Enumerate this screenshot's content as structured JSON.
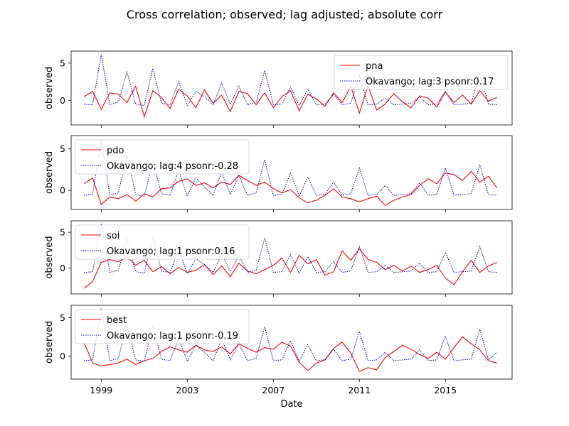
{
  "chart_data": {
    "type": "line",
    "title": "Cross correlation; observed; lag adjusted; absolute corr",
    "xlabel": "Date",
    "x_ticks": [
      "1999",
      "2003",
      "2007",
      "2011",
      "2015"
    ],
    "x_range": [
      1997.6,
      2018.1
    ],
    "grid": false,
    "colors": {
      "index": "#ff0000",
      "okavango": "#0000cc"
    },
    "panels": [
      {
        "ylabel": "observed",
        "ylim": [
          -3.3,
          6.6
        ],
        "y_ticks": [
          0,
          5
        ],
        "legend_position": "upper right",
        "series": [
          {
            "name": "pna",
            "style": "solid",
            "x": [
              1998.2,
              1998.6,
              1999.0,
              1999.4,
              1999.8,
              2000.2,
              2000.6,
              2001.0,
              2001.4,
              2001.8,
              2002.2,
              2002.6,
              2003.0,
              2003.4,
              2003.8,
              2004.2,
              2004.6,
              2005.0,
              2005.4,
              2005.8,
              2006.2,
              2006.6,
              2007.0,
              2007.4,
              2007.8,
              2008.2,
              2008.6,
              2009.0,
              2009.4,
              2009.8,
              2010.2,
              2010.6,
              2011.0,
              2011.4,
              2011.8,
              2012.2,
              2012.6,
              2013.0,
              2013.4,
              2013.8,
              2014.2,
              2014.6,
              2015.0,
              2015.4,
              2015.8,
              2016.2,
              2016.6,
              2017.0,
              2017.4
            ],
            "values": [
              0.5,
              1.2,
              -1.2,
              1.0,
              0.8,
              -0.3,
              1.9,
              -2.2,
              1.3,
              0.4,
              -1.1,
              1.5,
              0.6,
              -1.0,
              1.4,
              -0.4,
              0.7,
              -1.5,
              1.2,
              0.9,
              -0.6,
              1.0,
              -1.0,
              0.5,
              1.3,
              -1.4,
              0.8,
              0.2,
              -0.8,
              1.0,
              -0.3,
              1.9,
              -1.7,
              2.0,
              -1.3,
              -0.5,
              0.9,
              -0.2,
              -1.0,
              0.6,
              0.3,
              -0.9,
              1.1,
              -0.3,
              0.7,
              -0.5,
              1.3,
              -0.1,
              0.4
            ]
          },
          {
            "name": "Okavango; lag:3 psonr:0.17",
            "style": "dotted",
            "x": [
              1998.2,
              1998.6,
              1999.0,
              1999.4,
              1999.8,
              2000.2,
              2000.6,
              2001.0,
              2001.4,
              2001.8,
              2002.2,
              2002.6,
              2003.0,
              2003.4,
              2003.8,
              2004.2,
              2004.6,
              2005.0,
              2005.4,
              2005.8,
              2006.2,
              2006.6,
              2007.0,
              2007.4,
              2007.8,
              2008.2,
              2008.6,
              2009.0,
              2009.4,
              2009.8,
              2010.2,
              2010.6,
              2011.0,
              2011.4,
              2011.8,
              2012.2,
              2012.6,
              2013.0,
              2013.4,
              2013.8,
              2014.2,
              2014.6,
              2015.0,
              2015.4,
              2015.8,
              2016.2,
              2016.6,
              2017.0,
              2017.4
            ],
            "values": [
              -0.5,
              -0.6,
              6.2,
              -0.6,
              -0.2,
              3.8,
              -0.5,
              -0.7,
              4.3,
              -0.4,
              -0.6,
              2.5,
              -0.7,
              1.2,
              0.5,
              -0.6,
              2.3,
              -0.5,
              1.9,
              -0.6,
              -0.3,
              4.0,
              -0.6,
              -0.5,
              1.8,
              -0.7,
              1.5,
              -0.6,
              -0.5,
              0.8,
              -0.6,
              -0.4,
              3.3,
              -0.6,
              -0.5,
              0.3,
              -0.6,
              -0.5,
              -0.4,
              0.5,
              -0.6,
              -0.5,
              1.2,
              -0.6,
              -0.5,
              -0.4,
              3.6,
              -0.5,
              -0.6
            ]
          }
        ]
      },
      {
        "ylabel": "observed",
        "ylim": [
          -2.3,
          6.6
        ],
        "y_ticks": [
          0,
          5
        ],
        "legend_position": "upper left",
        "series": [
          {
            "name": "pdo",
            "style": "solid",
            "x": [
              1998.2,
              1998.6,
              1999.0,
              1999.4,
              1999.8,
              2000.2,
              2000.6,
              2001.0,
              2001.4,
              2001.8,
              2002.2,
              2002.6,
              2003.0,
              2003.4,
              2003.8,
              2004.2,
              2004.6,
              2005.0,
              2005.4,
              2005.8,
              2006.2,
              2006.6,
              2007.0,
              2007.4,
              2007.8,
              2008.2,
              2008.6,
              2009.0,
              2009.4,
              2009.8,
              2010.2,
              2010.6,
              2011.0,
              2011.4,
              2011.8,
              2012.2,
              2012.6,
              2013.0,
              2013.4,
              2013.8,
              2014.2,
              2014.6,
              2015.0,
              2015.4,
              2015.8,
              2016.2,
              2016.6,
              2017.0,
              2017.4
            ],
            "values": [
              0.8,
              1.5,
              -1.7,
              -0.8,
              -1.0,
              -0.5,
              -1.3,
              -0.4,
              -0.8,
              0.2,
              0.3,
              1.1,
              1.4,
              0.6,
              0.9,
              0.3,
              1.0,
              0.7,
              1.8,
              1.2,
              0.6,
              1.0,
              0.2,
              -0.3,
              0.1,
              -0.9,
              -1.5,
              -1.2,
              -0.6,
              0.2,
              -0.8,
              -1.0,
              -1.4,
              -1.0,
              -0.7,
              -1.8,
              -1.2,
              -0.8,
              -0.5,
              0.6,
              1.4,
              0.8,
              2.1,
              1.9,
              1.2,
              2.3,
              1.0,
              1.7,
              0.3
            ]
          },
          {
            "name": "Okavango; lag:4 psonr:-0.28",
            "style": "dotted",
            "x": [
              1998.2,
              1998.6,
              1999.0,
              1999.4,
              1999.8,
              2000.2,
              2000.6,
              2001.0,
              2001.4,
              2001.8,
              2002.2,
              2002.6,
              2003.0,
              2003.4,
              2003.8,
              2004.2,
              2004.6,
              2005.0,
              2005.4,
              2005.8,
              2006.2,
              2006.6,
              2007.0,
              2007.4,
              2007.8,
              2008.2,
              2008.6,
              2009.0,
              2009.4,
              2009.8,
              2010.2,
              2010.6,
              2011.0,
              2011.4,
              2011.8,
              2012.2,
              2012.6,
              2013.0,
              2013.4,
              2013.8,
              2014.2,
              2014.6,
              2015.0,
              2015.4,
              2015.8,
              2016.2,
              2016.6,
              2017.0,
              2017.4
            ],
            "values": [
              -0.6,
              -0.5,
              6.1,
              -0.6,
              -0.3,
              4.3,
              -0.5,
              -0.7,
              3.6,
              -0.4,
              -0.6,
              2.4,
              -0.7,
              1.5,
              0.4,
              -0.6,
              2.2,
              -0.5,
              1.8,
              -0.6,
              -0.3,
              3.7,
              -0.6,
              -0.5,
              2.1,
              -0.7,
              1.6,
              -0.6,
              -0.5,
              1.0,
              -0.6,
              -0.4,
              2.7,
              -0.6,
              -0.5,
              0.6,
              -0.6,
              -0.5,
              -0.4,
              0.9,
              -0.6,
              -0.5,
              2.7,
              -0.6,
              -0.5,
              -0.4,
              3.1,
              -0.5,
              -0.6
            ]
          }
        ]
      },
      {
        "ylabel": "observed",
        "ylim": [
          -3.6,
          6.6
        ],
        "y_ticks": [
          0,
          5
        ],
        "legend_position": "upper left",
        "series": [
          {
            "name": "soi",
            "style": "solid",
            "x": [
              1998.2,
              1998.6,
              1999.0,
              1999.4,
              1999.8,
              2000.2,
              2000.6,
              2001.0,
              2001.4,
              2001.8,
              2002.2,
              2002.6,
              2003.0,
              2003.4,
              2003.8,
              2004.2,
              2004.6,
              2005.0,
              2005.4,
              2005.8,
              2006.2,
              2006.6,
              2007.0,
              2007.4,
              2007.8,
              2008.2,
              2008.6,
              2009.0,
              2009.4,
              2009.8,
              2010.2,
              2010.6,
              2011.0,
              2011.4,
              2011.8,
              2012.2,
              2012.6,
              2013.0,
              2013.4,
              2013.8,
              2014.2,
              2014.6,
              2015.0,
              2015.4,
              2015.8,
              2016.2,
              2016.6,
              2017.0,
              2017.4
            ],
            "values": [
              -2.8,
              -1.9,
              0.8,
              1.2,
              0.9,
              1.6,
              0.4,
              1.1,
              -0.5,
              0.2,
              -0.8,
              0.1,
              -0.6,
              -0.3,
              0.5,
              -0.9,
              0.3,
              -1.2,
              0.7,
              -0.4,
              -0.8,
              -0.2,
              0.4,
              1.4,
              -0.6,
              1.8,
              0.6,
              1.2,
              -1.0,
              -0.5,
              2.4,
              1.1,
              2.7,
              1.2,
              0.8,
              -0.2,
              0.4,
              -0.4,
              0.3,
              -0.6,
              -0.2,
              0.4,
              -1.4,
              -2.3,
              -0.5,
              1.1,
              -0.6,
              0.3,
              0.8
            ]
          },
          {
            "name": "Okavango; lag:1 psonr:0.16",
            "style": "dotted",
            "x": [
              1998.2,
              1998.6,
              1999.0,
              1999.4,
              1999.8,
              2000.2,
              2000.6,
              2001.0,
              2001.4,
              2001.8,
              2002.2,
              2002.6,
              2003.0,
              2003.4,
              2003.8,
              2004.2,
              2004.6,
              2005.0,
              2005.4,
              2005.8,
              2006.2,
              2006.6,
              2007.0,
              2007.4,
              2007.8,
              2008.2,
              2008.6,
              2009.0,
              2009.4,
              2009.8,
              2010.2,
              2010.6,
              2011.0,
              2011.4,
              2011.8,
              2012.2,
              2012.6,
              2013.0,
              2013.4,
              2013.8,
              2014.2,
              2014.6,
              2015.0,
              2015.4,
              2015.8,
              2016.2,
              2016.6,
              2017.0,
              2017.4
            ],
            "values": [
              -0.6,
              -0.5,
              6.2,
              -0.6,
              -0.3,
              4.1,
              -0.5,
              -0.7,
              4.4,
              -0.4,
              -0.6,
              2.6,
              -0.7,
              1.3,
              0.5,
              -0.6,
              2.0,
              -0.5,
              1.7,
              -0.6,
              -0.3,
              4.2,
              -0.6,
              -0.5,
              1.9,
              -0.7,
              1.6,
              -0.6,
              -0.5,
              0.9,
              -0.6,
              -0.4,
              3.0,
              -0.6,
              -0.5,
              0.4,
              -0.6,
              -0.5,
              -0.4,
              0.7,
              -0.6,
              -0.5,
              2.2,
              -0.6,
              -0.5,
              -0.4,
              3.0,
              -0.5,
              -0.6
            ]
          }
        ]
      },
      {
        "ylabel": "observed",
        "ylim": [
          -3.0,
          6.6
        ],
        "y_ticks": [
          0,
          5
        ],
        "legend_position": "upper left",
        "series": [
          {
            "name": "best",
            "style": "solid",
            "x": [
              1998.2,
              1998.6,
              1999.0,
              1999.4,
              1999.8,
              2000.2,
              2000.6,
              2001.0,
              2001.4,
              2001.8,
              2002.2,
              2002.6,
              2003.0,
              2003.4,
              2003.8,
              2004.2,
              2004.6,
              2005.0,
              2005.4,
              2005.8,
              2006.2,
              2006.6,
              2007.0,
              2007.4,
              2007.8,
              2008.2,
              2008.6,
              2009.0,
              2009.4,
              2009.8,
              2010.2,
              2010.6,
              2011.0,
              2011.4,
              2011.8,
              2012.2,
              2012.6,
              2013.0,
              2013.4,
              2013.8,
              2014.2,
              2014.6,
              2015.0,
              2015.4,
              2015.8,
              2016.2,
              2016.6,
              2017.0,
              2017.4
            ],
            "values": [
              1.8,
              -0.9,
              -1.3,
              -1.1,
              -0.9,
              -0.4,
              -1.1,
              -0.6,
              -0.3,
              0.6,
              1.2,
              0.8,
              0.5,
              1.4,
              0.8,
              0.6,
              1.2,
              0.3,
              1.6,
              1.0,
              0.5,
              1.1,
              0.9,
              1.8,
              1.3,
              -0.8,
              -1.9,
              -0.9,
              -0.5,
              1.0,
              1.8,
              0.4,
              -2.0,
              -1.5,
              -1.8,
              -0.2,
              0.6,
              1.4,
              0.9,
              0.2,
              -0.3,
              0.5,
              -0.4,
              1.1,
              2.5,
              1.6,
              0.8,
              -0.6,
              -0.9
            ]
          },
          {
            "name": "Okavango; lag:1 psonr:-0.19",
            "style": "dotted",
            "x": [
              1998.2,
              1998.6,
              1999.0,
              1999.4,
              1999.8,
              2000.2,
              2000.6,
              2001.0,
              2001.4,
              2001.8,
              2002.2,
              2002.6,
              2003.0,
              2003.4,
              2003.8,
              2004.2,
              2004.6,
              2005.0,
              2005.4,
              2005.8,
              2006.2,
              2006.6,
              2007.0,
              2007.4,
              2007.8,
              2008.2,
              2008.6,
              2009.0,
              2009.4,
              2009.8,
              2010.2,
              2010.6,
              2011.0,
              2011.4,
              2011.8,
              2012.2,
              2012.6,
              2013.0,
              2013.4,
              2013.8,
              2014.2,
              2014.6,
              2015.0,
              2015.4,
              2015.8,
              2016.2,
              2016.6,
              2017.0,
              2017.4
            ],
            "values": [
              -0.6,
              -0.5,
              6.2,
              -0.6,
              -0.3,
              4.2,
              -0.5,
              -0.7,
              4.0,
              -0.4,
              -0.6,
              2.3,
              -0.7,
              1.4,
              0.5,
              -0.6,
              2.2,
              -0.5,
              1.6,
              -0.6,
              -0.3,
              3.8,
              -0.6,
              -0.5,
              2.0,
              -0.7,
              1.5,
              -0.6,
              -0.5,
              0.9,
              -0.6,
              -0.4,
              3.2,
              -0.6,
              -0.5,
              0.5,
              -0.6,
              -0.5,
              -0.4,
              0.8,
              -0.6,
              -0.5,
              2.6,
              -0.6,
              -0.5,
              -0.4,
              3.5,
              -0.5,
              0.5
            ]
          }
        ]
      }
    ]
  }
}
